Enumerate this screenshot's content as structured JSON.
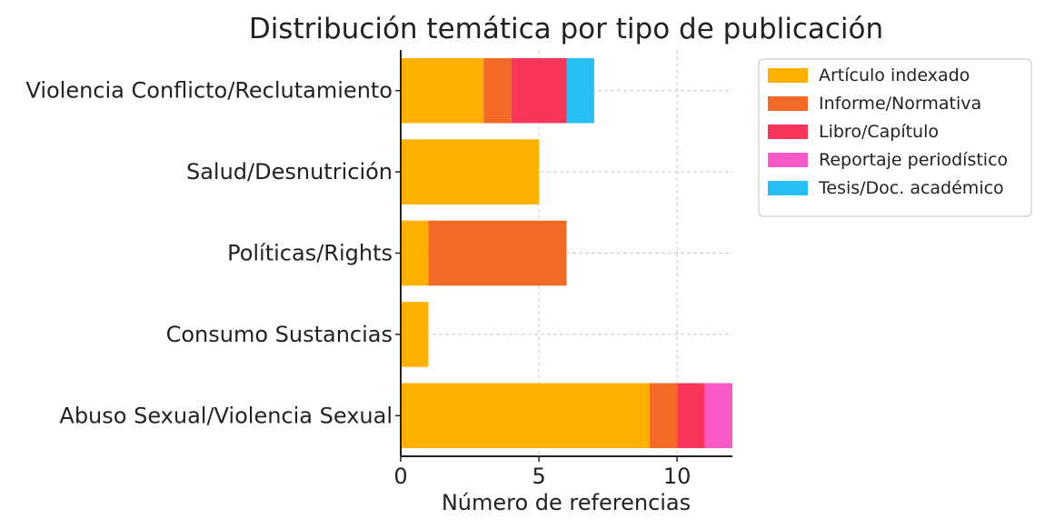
{
  "chart_data": {
    "type": "bar",
    "orientation": "horizontal",
    "stacked": true,
    "title": "Distribución temática por tipo de publicación",
    "xlabel": "Número de referencias",
    "ylabel": "",
    "xlim": [
      0,
      12
    ],
    "xticks": [
      0,
      5,
      10
    ],
    "grid": true,
    "legend_position": "upper-right-outside",
    "categories": [
      "Violencia Conflicto/Reclutamiento",
      "Salud/Desnutrición",
      "Políticas/Rights",
      "Consumo Sustancias",
      "Abuso Sexual/Violencia Sexual"
    ],
    "series": [
      {
        "name": "Artículo indexado",
        "color": "#FFB000",
        "values": [
          3,
          5,
          1,
          1,
          9
        ]
      },
      {
        "name": "Informe/Normativa",
        "color": "#F46A24",
        "values": [
          1,
          0,
          5,
          0,
          1
        ]
      },
      {
        "name": "Libro/Capítulo",
        "color": "#F7365A",
        "values": [
          2,
          0,
          0,
          0,
          1
        ]
      },
      {
        "name": "Reportaje periodístico",
        "color": "#F85BC6",
        "values": [
          0,
          0,
          0,
          0,
          1
        ]
      },
      {
        "name": "Tesis/Doc. académico",
        "color": "#25BEF7",
        "values": [
          1,
          0,
          0,
          0,
          0
        ]
      }
    ]
  }
}
